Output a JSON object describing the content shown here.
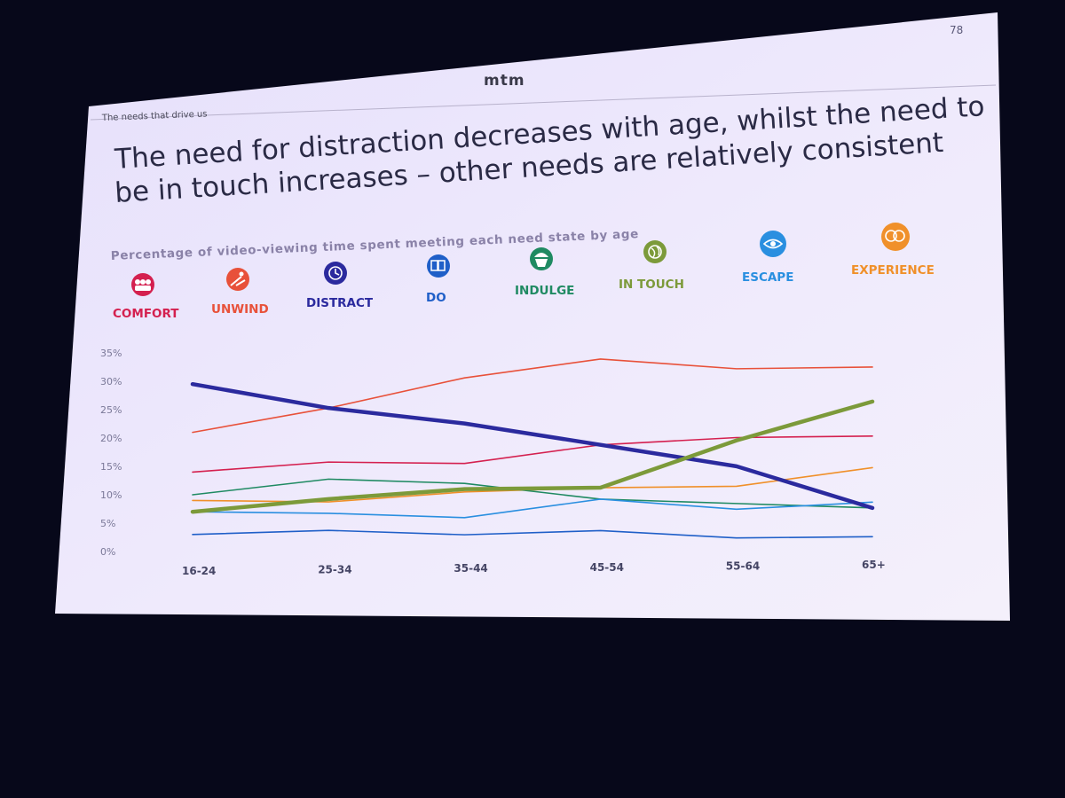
{
  "slide": {
    "page_number": "78",
    "brand": "mtm",
    "section_label": "The needs that drive us",
    "headline_line1": "The need for distraction decreases with age, whilst the need to",
    "headline_line2": "be in touch increases – other needs are relatively consistent"
  },
  "colors": {
    "background": "#07081a",
    "slide": "#ece8fb",
    "comfort": "#d4204f",
    "unwind": "#e8513a",
    "distract": "#2b2a9e",
    "do": "#1f5fc8",
    "indulge": "#1f8a62",
    "in_touch": "#7c9a3a",
    "escape": "#2a8fe0",
    "experience": "#f0902a"
  },
  "legend": [
    {
      "key": "comfort",
      "label": "COMFORT",
      "icon": "group-people-icon"
    },
    {
      "key": "unwind",
      "label": "UNWIND",
      "icon": "lounger-icon"
    },
    {
      "key": "distract",
      "label": "DISTRACT",
      "icon": "clock-icon"
    },
    {
      "key": "do",
      "label": "DO",
      "icon": "book-icon"
    },
    {
      "key": "indulge",
      "label": "INDULGE",
      "icon": "cupcake-icon"
    },
    {
      "key": "in_touch",
      "label": "IN TOUCH",
      "icon": "globe-icon"
    },
    {
      "key": "escape",
      "label": "ESCAPE",
      "icon": "eye-icon"
    },
    {
      "key": "experience",
      "label": "EXPERIENCE",
      "icon": "faces-icon"
    }
  ],
  "chart_data": {
    "type": "line",
    "title": "Percentage of video-viewing time spent meeting each need state by age",
    "xlabel": "",
    "ylabel": "",
    "categories": [
      "16-24",
      "25-34",
      "35-44",
      "45-54",
      "55-64",
      "65+"
    ],
    "yticks": [
      "0%",
      "5%",
      "10%",
      "15%",
      "20%",
      "25%",
      "30%",
      "35%"
    ],
    "ylim": [
      0,
      35
    ],
    "grid": false,
    "series": [
      {
        "name": "UNWIND",
        "key": "unwind",
        "values": [
          21,
          25,
          30,
          33,
          31,
          31
        ]
      },
      {
        "name": "COMFORT",
        "key": "comfort",
        "values": [
          14,
          15.5,
          15,
          18,
          19,
          19
        ]
      },
      {
        "name": "EXPERIENCE",
        "key": "experience",
        "values": [
          9,
          8.5,
          10,
          10.5,
          10.5,
          13.5
        ]
      },
      {
        "name": "INDULGE",
        "key": "indulge",
        "values": [
          10,
          12.5,
          11.5,
          8.5,
          7.5,
          6.5
        ]
      },
      {
        "name": "ESCAPE",
        "key": "escape",
        "values": [
          7,
          6.5,
          5.5,
          8.5,
          6.5,
          7.5
        ]
      },
      {
        "name": "DO",
        "key": "do",
        "values": [
          3,
          3.5,
          2.5,
          3,
          1.5,
          1.5
        ]
      },
      {
        "name": "DISTRACT",
        "key": "distract",
        "values": [
          29.5,
          25,
          22,
          18,
          14,
          6.5
        ]
      },
      {
        "name": "IN TOUCH",
        "key": "in_touch",
        "values": [
          7,
          9,
          10.5,
          10.5,
          18.5,
          25
        ]
      }
    ]
  }
}
